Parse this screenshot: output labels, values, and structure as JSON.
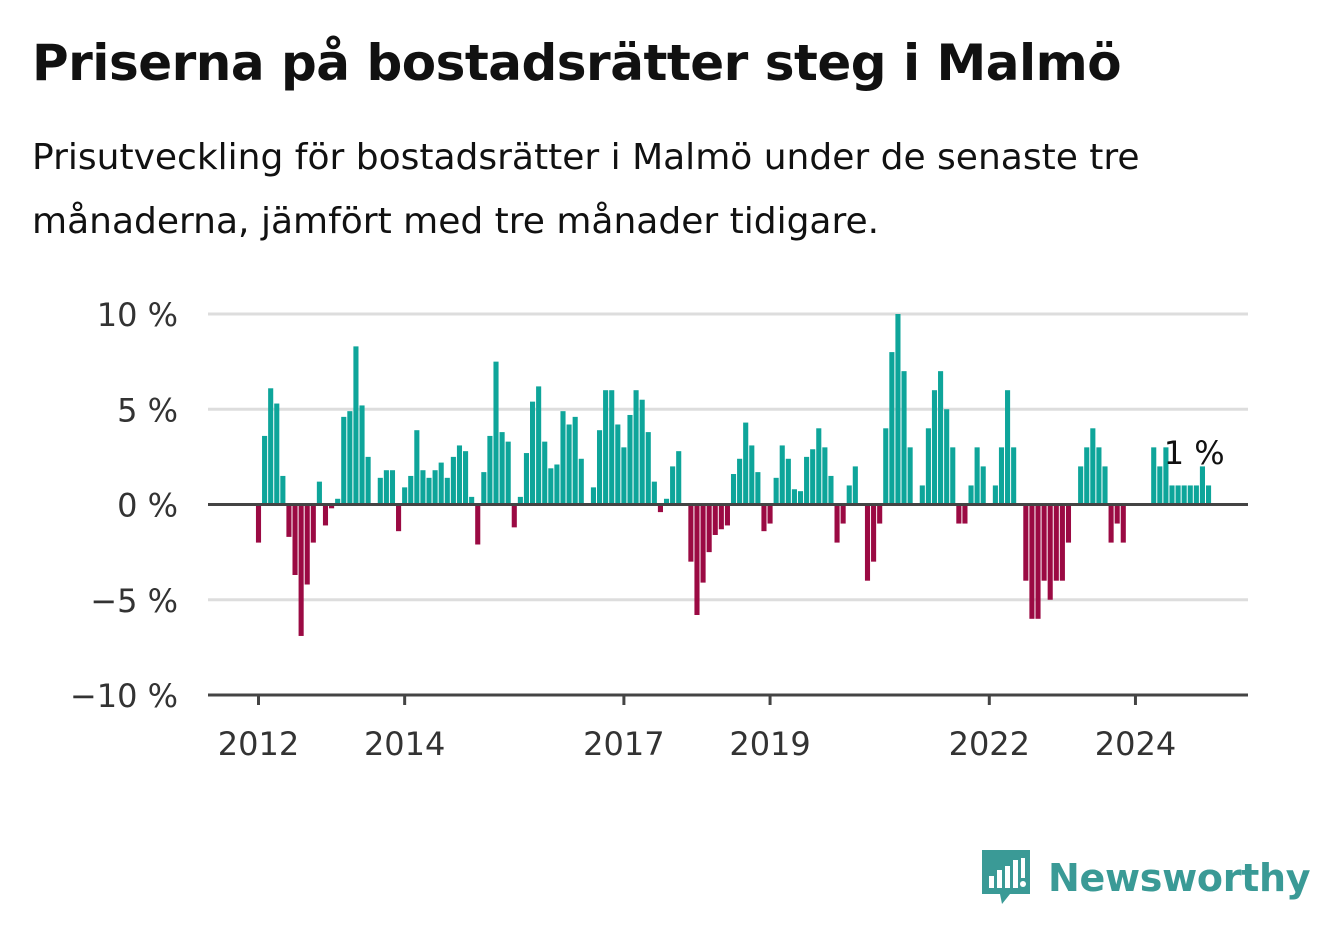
{
  "title": "Priserna på bostadsrätter steg i Malmö",
  "subtitle": "Prisutveckling för bostadsrätter i Malmö under de senaste tre månaderna, jämfört med tre månader tidigare.",
  "brand": {
    "name": "Newsworthy",
    "icon": "bar-chart-speech-bubble-icon",
    "color": "#3a9a96"
  },
  "colors": {
    "positive": "#0ea59a",
    "negative": "#9b0a43",
    "grid": "#dddddd",
    "axis": "#444444"
  },
  "chart_data": {
    "type": "bar",
    "title": "Priserna på bostadsrätter steg i Malmö",
    "xlabel": "",
    "ylabel": "",
    "ylim": [
      -10,
      10
    ],
    "yticks": [
      10,
      5,
      0,
      -5,
      -10
    ],
    "ytick_labels": [
      "10 %",
      "5 %",
      "0 %",
      "−5 %",
      "−10 %"
    ],
    "x_start": "2012-01",
    "xticks": [
      {
        "label": "2012",
        "month": "2012-01"
      },
      {
        "label": "2014",
        "month": "2014-01"
      },
      {
        "label": "2017",
        "month": "2017-01"
      },
      {
        "label": "2019",
        "month": "2019-01"
      },
      {
        "label": "2022",
        "month": "2022-01"
      },
      {
        "label": "2024",
        "month": "2024-01"
      }
    ],
    "grid": true,
    "annotation": {
      "text": "1 %",
      "month": "2024-09",
      "value": 1
    },
    "values": [
      -2,
      3.6,
      6.1,
      5.3,
      1.5,
      -1.7,
      -3.7,
      -6.9,
      -4.2,
      -2,
      1.2,
      -1.1,
      -0.2,
      0.3,
      4.6,
      4.9,
      8.3,
      5.2,
      2.5,
      0,
      1.4,
      1.8,
      1.8,
      -1.4,
      0.9,
      1.5,
      3.9,
      1.8,
      1.4,
      1.8,
      2.2,
      1.4,
      2.5,
      3.1,
      2.8,
      0.4,
      -2.1,
      1.7,
      3.6,
      7.5,
      3.8,
      3.3,
      -1.2,
      0.4,
      2.7,
      5.4,
      6.2,
      3.3,
      1.9,
      2.1,
      4.9,
      4.2,
      4.6,
      2.4,
      0,
      0.9,
      3.9,
      6,
      6,
      4.2,
      3,
      4.7,
      6,
      5.5,
      3.8,
      1.2,
      -0.4,
      0.3,
      2,
      2.8,
      0,
      -3,
      -5.8,
      -4.1,
      -2.5,
      -1.6,
      -1.3,
      -1.1,
      1.6,
      2.4,
      4.3,
      3.1,
      1.7,
      -1.4,
      -1,
      1.4,
      3.1,
      2.4,
      0.8,
      0.7,
      2.5,
      2.9,
      4,
      3,
      1.5,
      -2,
      -1,
      1,
      2,
      0,
      -4,
      -3,
      -1,
      4,
      8,
      10,
      7,
      3,
      0,
      1,
      4,
      6,
      7,
      5,
      3,
      -1,
      -1,
      1,
      3,
      2,
      0,
      1,
      3,
      6,
      3,
      0,
      -4,
      -6,
      -6,
      -4,
      -5,
      -4,
      -4,
      -2,
      0,
      2,
      3,
      4,
      3,
      2,
      -2,
      -1,
      -2,
      0,
      0,
      0,
      0,
      3,
      2,
      3,
      1,
      1,
      1,
      1,
      1,
      2,
      1
    ]
  }
}
